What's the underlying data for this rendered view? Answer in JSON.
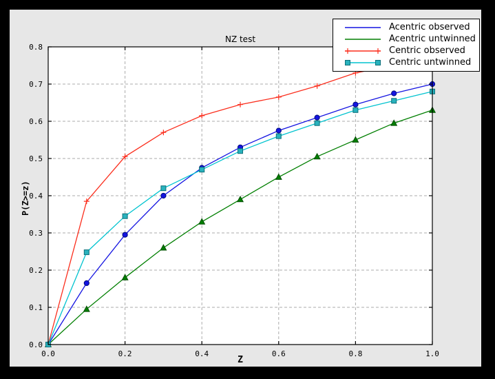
{
  "figure": {
    "outer_background": "#000000",
    "background": "#e7e7e7",
    "axes_background": "#ffffff",
    "spine_color": "#000000"
  },
  "chart_data": {
    "type": "line",
    "title": "NZ test",
    "xlabel": "Z",
    "ylabel": "P(Z>=z)",
    "xlim": [
      0.0,
      1.0
    ],
    "ylim": [
      0.0,
      0.8
    ],
    "grid": true,
    "grid_color": "#ababab",
    "legend_position": "upper right",
    "x_ticks": [
      0.0,
      0.2,
      0.4,
      0.6,
      0.8,
      1.0
    ],
    "x_tick_labels": [
      "0.0",
      "0.2",
      "0.4",
      "0.6",
      "0.8",
      "1.0"
    ],
    "y_ticks": [
      0.0,
      0.1,
      0.2,
      0.3,
      0.4,
      0.5,
      0.6,
      0.7,
      0.8
    ],
    "y_tick_labels": [
      "0.0",
      "0.1",
      "0.2",
      "0.3",
      "0.4",
      "0.5",
      "0.6",
      "0.7",
      "0.8"
    ],
    "x": [
      0.0,
      0.1,
      0.2,
      0.3,
      0.4,
      0.5,
      0.6,
      0.7,
      0.8,
      0.9,
      1.0
    ],
    "series": [
      {
        "name": "Acentric observed",
        "color": "#1414e1",
        "marker": "circle",
        "marker_face": "#1414e1",
        "marker_edge": "#000c7a",
        "legend_marker": false,
        "values": [
          0.0,
          0.165,
          0.295,
          0.4,
          0.475,
          0.53,
          0.575,
          0.61,
          0.645,
          0.675,
          0.7
        ]
      },
      {
        "name": "Acentric untwinned",
        "color": "#007f00",
        "marker": "triangle-up",
        "marker_face": "#007f00",
        "marker_edge": "#004d00",
        "legend_marker": false,
        "values": [
          0.0,
          0.095,
          0.18,
          0.26,
          0.33,
          0.39,
          0.45,
          0.505,
          0.55,
          0.595,
          0.63
        ]
      },
      {
        "name": "Centric observed",
        "color": "#fb2d1c",
        "marker": "plus",
        "marker_face": "#fb2d1c",
        "marker_edge": "#fb2d1c",
        "legend_marker": true,
        "values": [
          0.0,
          0.385,
          0.505,
          0.57,
          0.615,
          0.645,
          0.665,
          0.695,
          0.73,
          0.75,
          0.775
        ]
      },
      {
        "name": "Centric untwinned",
        "color": "#00c3cf",
        "marker": "square",
        "marker_face": "#29b2bd",
        "marker_edge": "#0c6f79",
        "legend_marker": true,
        "values": [
          0.0,
          0.248,
          0.345,
          0.42,
          0.47,
          0.52,
          0.56,
          0.595,
          0.63,
          0.655,
          0.68
        ]
      }
    ]
  }
}
